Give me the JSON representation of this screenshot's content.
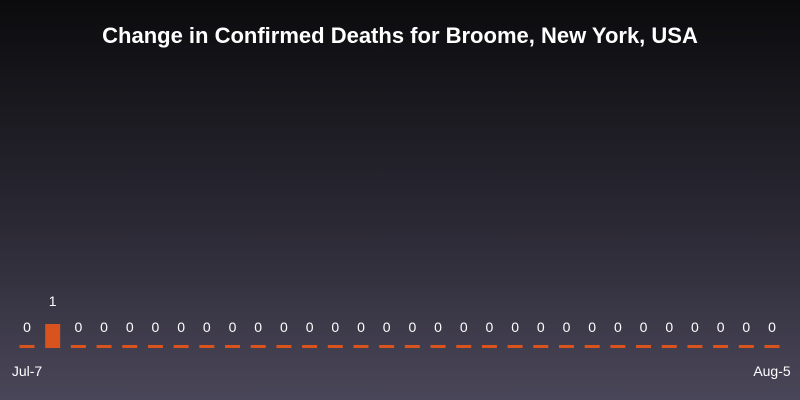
{
  "colors": {
    "bar": "#d9531e",
    "text": "#ffffff"
  },
  "chart_data": {
    "type": "bar",
    "title": "Change in Confirmed Deaths for Broome, New York, USA",
    "xlabel": "",
    "ylabel": "",
    "grid": false,
    "legend": "none",
    "x": [
      "2020-07-07",
      "2020-07-08",
      "2020-07-09",
      "2020-07-10",
      "2020-07-11",
      "2020-07-12",
      "2020-07-13",
      "2020-07-14",
      "2020-07-15",
      "2020-07-16",
      "2020-07-17",
      "2020-07-18",
      "2020-07-19",
      "2020-07-20",
      "2020-07-21",
      "2020-07-22",
      "2020-07-23",
      "2020-07-24",
      "2020-07-25",
      "2020-07-26",
      "2020-07-27",
      "2020-07-28",
      "2020-07-29",
      "2020-07-30",
      "2020-07-31",
      "2020-08-01",
      "2020-08-02",
      "2020-08-03",
      "2020-08-04",
      "2020-08-05"
    ],
    "values": [
      0,
      1,
      0,
      0,
      0,
      0,
      0,
      0,
      0,
      0,
      0,
      0,
      0,
      0,
      0,
      0,
      0,
      0,
      0,
      0,
      0,
      0,
      0,
      0,
      0,
      0,
      0,
      0,
      0,
      0
    ],
    "x_tick_labels": [
      {
        "index": 0,
        "label": "Jul-7"
      },
      {
        "index": 29,
        "label": "Aug-5"
      }
    ]
  }
}
